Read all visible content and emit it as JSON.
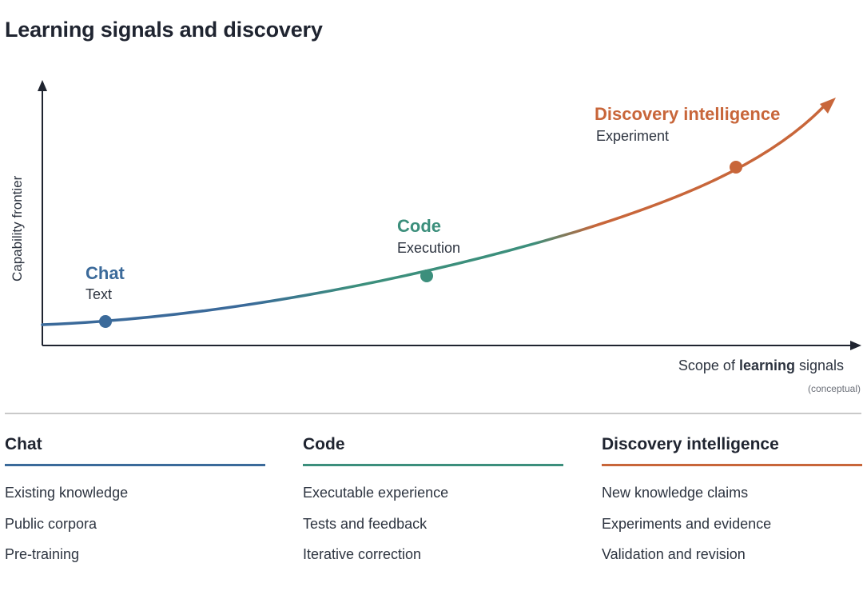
{
  "title": "Learning signals and discovery",
  "diagram": {
    "y_axis_label": "Capability frontier",
    "x_axis_label_prefix": "Scope of ",
    "x_axis_label_em": "learning",
    "x_axis_label_suffix": " signals",
    "x_axis_note": "(conceptual)",
    "stages": [
      {
        "name": "Chat",
        "signal": "Text",
        "color": "#3b6a9a"
      },
      {
        "name": "Code",
        "signal": "Execution",
        "color": "#3c8f7c"
      },
      {
        "name": "Discovery intelligence",
        "signal": "Experiment",
        "color": "#c8663a"
      }
    ]
  },
  "columns": [
    {
      "title": "Chat",
      "color": "#3b6a9a",
      "items": [
        "Existing knowledge",
        "Public corpora",
        "Pre-training"
      ]
    },
    {
      "title": "Code",
      "color": "#3c8f7c",
      "items": [
        "Executable experience",
        "Tests and feedback",
        "Iterative correction"
      ]
    },
    {
      "title": "Discovery intelligence",
      "color": "#c8663a",
      "items": [
        "New knowledge claims",
        "Experiments and evidence",
        "Validation and revision"
      ]
    }
  ]
}
